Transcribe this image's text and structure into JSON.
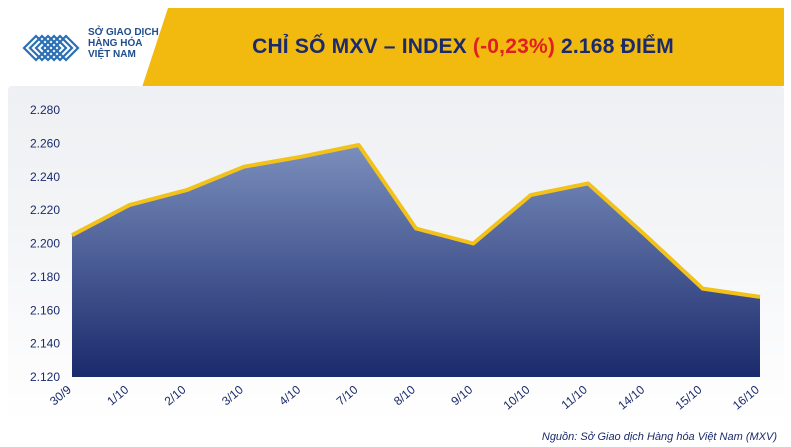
{
  "header": {
    "title_prefix": "CHỈ SỐ MXV – INDEX",
    "change": "(-0,23%)",
    "title_suffix": "2.168 ĐIỂM",
    "logo_line1": "SỞ GIAO DỊCH",
    "logo_line2": "HÀNG HÓA",
    "logo_line3": "VIỆT NAM"
  },
  "source": "Nguồn: Sở Giao dịch Hàng hóa Việt Nam (MXV)",
  "colors": {
    "header": "#f2b90f",
    "line": "#f2c21a",
    "area_top": "#7b8fbd",
    "area_bottom": "#1a2a6c",
    "text": "#1b2a6b",
    "change": "#e02020"
  },
  "chart_data": {
    "type": "area",
    "categories": [
      "30/9",
      "1/10",
      "2/10",
      "3/10",
      "4/10",
      "7/10",
      "8/10",
      "9/10",
      "10/10",
      "11/10",
      "14/10",
      "15/10",
      "16/10"
    ],
    "values": [
      2205,
      2223,
      2232,
      2246,
      2252,
      2259,
      2209,
      2200,
      2229,
      2236,
      2205,
      2173,
      2168
    ],
    "yticks": [
      "2.120",
      "2.140",
      "2.160",
      "2.180",
      "2.200",
      "2.220",
      "2.240",
      "2.260",
      "2.280"
    ],
    "ylim": [
      2120,
      2280
    ],
    "title": "CHỈ SỐ MXV – INDEX (-0,23%) 2.168 ĐIỂM",
    "grid": false
  }
}
